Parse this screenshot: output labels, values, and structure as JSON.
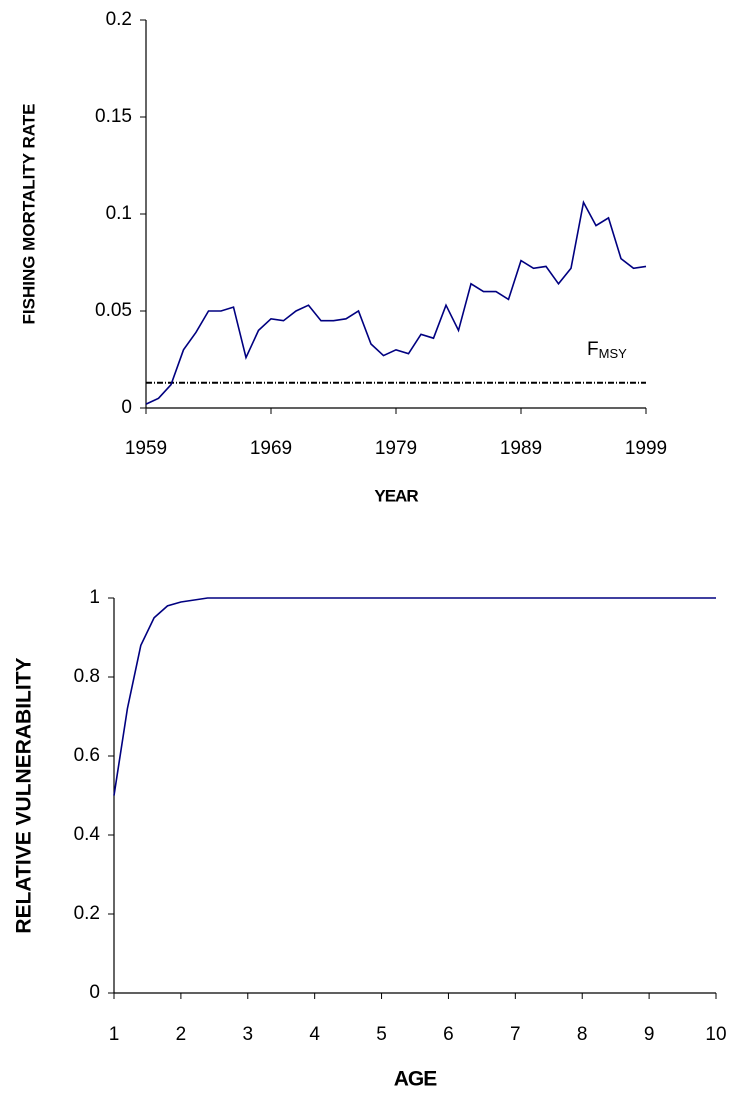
{
  "chart_data": [
    {
      "type": "line",
      "x_label": "YEAR",
      "y_label": "FISHING MORTALITY RATE",
      "x": [
        1959,
        1960,
        1961,
        1962,
        1963,
        1964,
        1965,
        1966,
        1967,
        1968,
        1969,
        1970,
        1971,
        1972,
        1973,
        1974,
        1975,
        1976,
        1977,
        1978,
        1979,
        1980,
        1981,
        1982,
        1983,
        1984,
        1985,
        1986,
        1987,
        1988,
        1989,
        1990,
        1991,
        1992,
        1993,
        1994,
        1995,
        1996,
        1997,
        1998,
        1999
      ],
      "values": [
        0.002,
        0.005,
        0.012,
        0.03,
        0.039,
        0.05,
        0.05,
        0.052,
        0.026,
        0.04,
        0.046,
        0.045,
        0.05,
        0.053,
        0.045,
        0.045,
        0.046,
        0.05,
        0.033,
        0.027,
        0.03,
        0.028,
        0.038,
        0.036,
        0.053,
        0.04,
        0.064,
        0.06,
        0.06,
        0.056,
        0.076,
        0.072,
        0.073,
        0.064,
        0.072,
        0.106,
        0.094,
        0.098,
        0.077,
        0.072,
        0.073
      ],
      "color": "#000080",
      "xlim": [
        1959,
        1999
      ],
      "xticks": [
        1959,
        1969,
        1979,
        1989,
        1999
      ],
      "ylim": [
        0,
        0.2
      ],
      "yticks": [
        0,
        0.05,
        0.1,
        0.15,
        0.2
      ],
      "fmsy": {
        "value": 0.013,
        "label": "F",
        "label_sub": "MSY"
      }
    },
    {
      "type": "line",
      "x_label": "AGE",
      "y_label": "RELATIVE VULNERABILITY",
      "x": [
        1,
        1.2,
        1.4,
        1.6,
        1.8,
        2,
        2.2,
        2.4,
        3,
        4,
        5,
        6,
        7,
        8,
        9,
        10
      ],
      "values": [
        0.5,
        0.72,
        0.88,
        0.95,
        0.98,
        0.99,
        0.995,
        1,
        1,
        1,
        1,
        1,
        1,
        1,
        1,
        1
      ],
      "color": "#000080",
      "xlim": [
        1,
        10
      ],
      "xticks": [
        1,
        2,
        3,
        4,
        5,
        6,
        7,
        8,
        9,
        10
      ],
      "ylim": [
        0,
        1
      ],
      "yticks": [
        0,
        0.2,
        0.4,
        0.6,
        0.8,
        1
      ]
    }
  ]
}
